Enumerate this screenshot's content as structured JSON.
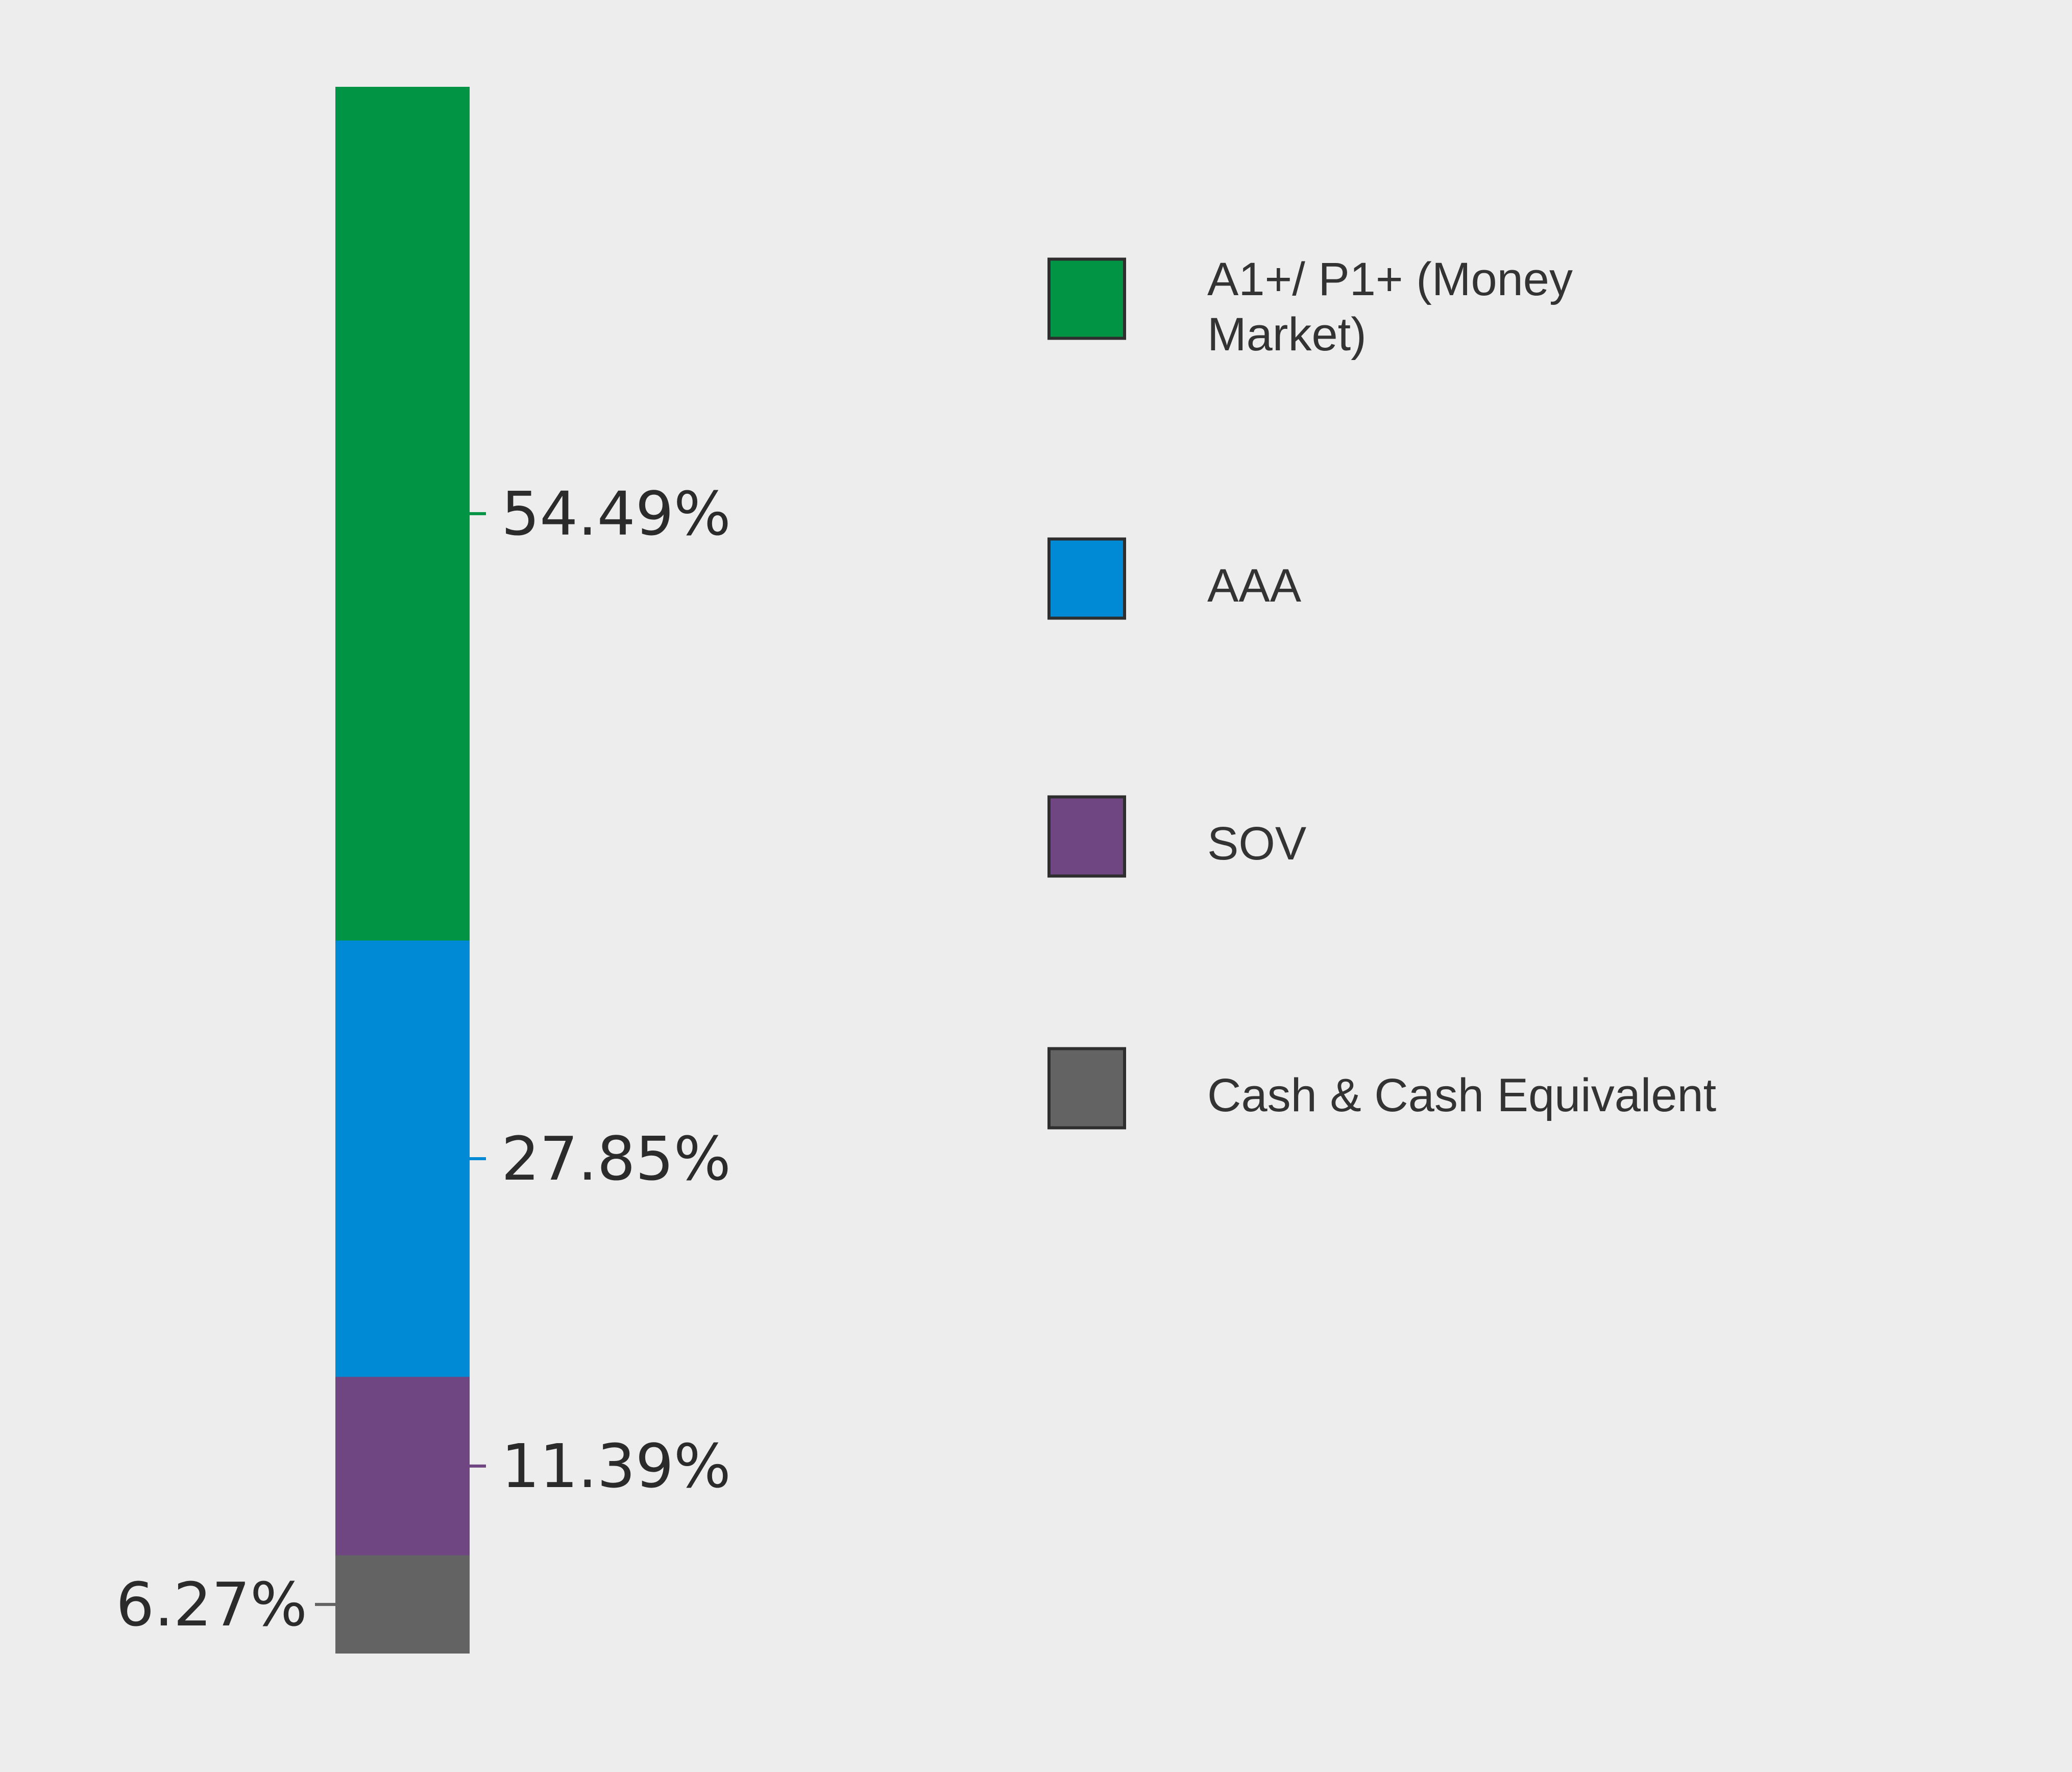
{
  "chart_data": {
    "type": "bar",
    "stacked": true,
    "orientation": "vertical",
    "categories": [
      ""
    ],
    "series": [
      {
        "name": "A1+/ P1+ (Money Market)",
        "values": [
          54.49
        ],
        "label": "54.49%",
        "color": "#009444"
      },
      {
        "name": "AAA",
        "values": [
          27.85
        ],
        "label": "27.85%",
        "color": "#008ad5"
      },
      {
        "name": "SOV",
        "values": [
          11.39
        ],
        "label": "11.39%",
        "color": "#6f4682"
      },
      {
        "name": "Cash & Cash Equivalent",
        "values": [
          6.27
        ],
        "label": "6.27%",
        "color": "#636363"
      }
    ],
    "total": 100,
    "grid": false,
    "legend": {
      "position": "right",
      "entries": [
        {
          "lines": [
            "A1+/ P1+ (Money",
            "Market)"
          ],
          "color": "#009444"
        },
        {
          "lines": [
            "AAA"
          ],
          "color": "#008ad5"
        },
        {
          "lines": [
            "SOV"
          ],
          "color": "#6f4682"
        },
        {
          "lines": [
            "Cash & Cash Equivalent"
          ],
          "color": "#636363"
        }
      ]
    }
  }
}
